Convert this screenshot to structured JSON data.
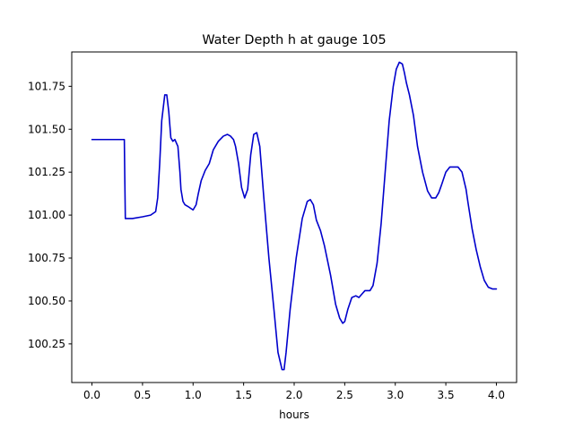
{
  "chart_data": {
    "type": "line",
    "title": "Water Depth h at gauge 105",
    "xlabel": "hours",
    "ylabel": "",
    "xlim": [
      -0.2,
      4.2
    ],
    "ylim": [
      100.025,
      101.95
    ],
    "xticks": [
      0.0,
      0.5,
      1.0,
      1.5,
      2.0,
      2.5,
      3.0,
      3.5,
      4.0
    ],
    "xtick_labels": [
      "0.0",
      "0.5",
      "1.0",
      "1.5",
      "2.0",
      "2.5",
      "3.0",
      "3.5",
      "4.0"
    ],
    "yticks": [
      100.25,
      100.5,
      100.75,
      101.0,
      101.25,
      101.5,
      101.75
    ],
    "ytick_labels": [
      "100.25",
      "100.50",
      "100.75",
      "101.00",
      "101.25",
      "101.50",
      "101.75"
    ],
    "grid": false,
    "series": [
      {
        "color": "#0000cc",
        "x": [
          0.0,
          0.1,
          0.2,
          0.32,
          0.325,
          0.33,
          0.4,
          0.5,
          0.58,
          0.63,
          0.65,
          0.67,
          0.69,
          0.72,
          0.74,
          0.76,
          0.78,
          0.8,
          0.82,
          0.85,
          0.87,
          0.88,
          0.9,
          0.92,
          0.95,
          1.0,
          1.03,
          1.05,
          1.08,
          1.12,
          1.16,
          1.2,
          1.25,
          1.3,
          1.34,
          1.37,
          1.4,
          1.42,
          1.45,
          1.48,
          1.51,
          1.54,
          1.57,
          1.6,
          1.63,
          1.66,
          1.7,
          1.75,
          1.8,
          1.84,
          1.88,
          1.9,
          1.92,
          1.96,
          2.02,
          2.08,
          2.13,
          2.16,
          2.19,
          2.22,
          2.26,
          2.3,
          2.36,
          2.41,
          2.45,
          2.48,
          2.5,
          2.53,
          2.57,
          2.61,
          2.64,
          2.67,
          2.7,
          2.73,
          2.75,
          2.78,
          2.82,
          2.86,
          2.9,
          2.94,
          2.98,
          3.01,
          3.04,
          3.07,
          3.09,
          3.11,
          3.14,
          3.18,
          3.22,
          3.27,
          3.32,
          3.36,
          3.4,
          3.43,
          3.46,
          3.5,
          3.54,
          3.58,
          3.62,
          3.66,
          3.7,
          3.72,
          3.76,
          3.8,
          3.84,
          3.88,
          3.92,
          3.96,
          4.0
        ],
        "values": [
          101.44,
          101.44,
          101.44,
          101.44,
          101.2,
          100.98,
          100.98,
          100.99,
          101.0,
          101.02,
          101.1,
          101.3,
          101.55,
          101.7,
          101.7,
          101.6,
          101.45,
          101.43,
          101.44,
          101.4,
          101.25,
          101.15,
          101.08,
          101.06,
          101.05,
          101.03,
          101.06,
          101.12,
          101.2,
          101.26,
          101.3,
          101.38,
          101.43,
          101.46,
          101.47,
          101.46,
          101.44,
          101.4,
          101.3,
          101.16,
          101.1,
          101.15,
          101.35,
          101.47,
          101.48,
          101.4,
          101.1,
          100.75,
          100.45,
          100.2,
          100.1,
          100.1,
          100.2,
          100.45,
          100.75,
          100.98,
          101.08,
          101.09,
          101.06,
          100.97,
          100.91,
          100.82,
          100.65,
          100.48,
          100.4,
          100.37,
          100.38,
          100.45,
          100.52,
          100.53,
          100.52,
          100.54,
          100.56,
          100.56,
          100.56,
          100.59,
          100.72,
          100.95,
          101.25,
          101.55,
          101.75,
          101.85,
          101.89,
          101.88,
          101.83,
          101.77,
          101.7,
          101.58,
          101.4,
          101.25,
          101.14,
          101.1,
          101.1,
          101.13,
          101.18,
          101.25,
          101.28,
          101.28,
          101.28,
          101.25,
          101.15,
          101.07,
          100.92,
          100.8,
          100.7,
          100.62,
          100.58,
          100.57,
          100.57
        ]
      }
    ]
  }
}
